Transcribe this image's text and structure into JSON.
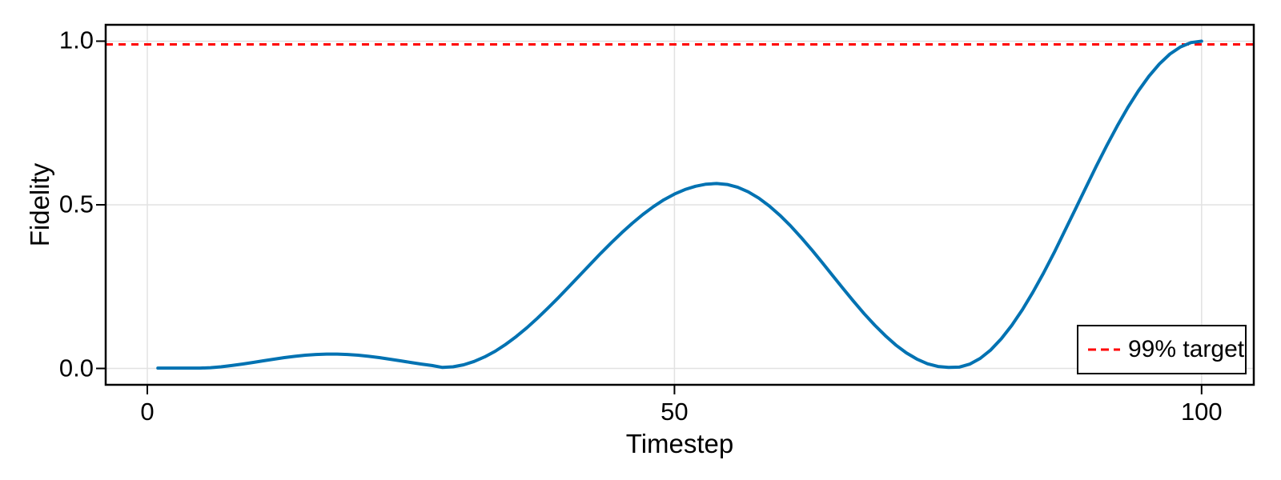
{
  "chart_data": {
    "type": "line",
    "title": "",
    "xlabel": "Timestep",
    "ylabel": "Fidelity",
    "xlim": [
      -3.95,
      104.95
    ],
    "ylim": [
      -0.05,
      1.05
    ],
    "x_ticks": [
      0,
      50,
      100
    ],
    "x_tick_labels": [
      "0",
      "50",
      "100"
    ],
    "y_ticks": [
      0,
      0.5,
      1
    ],
    "y_tick_labels": [
      "0.0",
      "0.5",
      "1.0"
    ],
    "grid": true,
    "grid_color": "#e2e2e2",
    "frame_color": "#000000",
    "background": "#ffffff",
    "legend_position": "bottom-right",
    "series": [
      {
        "name": "fidelity",
        "color": "#0072B2",
        "line_width": 4,
        "x": [
          1,
          2,
          3,
          4,
          5,
          6,
          7,
          8,
          9,
          10,
          11,
          12,
          13,
          14,
          15,
          16,
          17,
          18,
          19,
          20,
          21,
          22,
          23,
          24,
          25,
          26,
          27,
          28,
          29,
          30,
          31,
          32,
          33,
          34,
          35,
          36,
          37,
          38,
          39,
          40,
          41,
          42,
          43,
          44,
          45,
          46,
          47,
          48,
          49,
          50,
          51,
          52,
          53,
          54,
          55,
          56,
          57,
          58,
          59,
          60,
          61,
          62,
          63,
          64,
          65,
          66,
          67,
          68,
          69,
          70,
          71,
          72,
          73,
          74,
          75,
          76,
          77,
          78,
          79,
          80,
          81,
          82,
          83,
          84,
          85,
          86,
          87,
          88,
          89,
          90,
          91,
          92,
          93,
          94,
          95,
          96,
          97,
          98,
          99,
          100
        ],
        "y": [
          0.001,
          0.001,
          0.001,
          0.001,
          0.0012,
          0.0023,
          0.0051,
          0.0089,
          0.0133,
          0.0182,
          0.0233,
          0.0283,
          0.033,
          0.0371,
          0.0404,
          0.0427,
          0.0439,
          0.0439,
          0.0427,
          0.0404,
          0.0371,
          0.033,
          0.0283,
          0.0233,
          0.0182,
          0.0133,
          0.0089,
          0.003,
          0.0051,
          0.0112,
          0.0213,
          0.0352,
          0.0527,
          0.0737,
          0.0976,
          0.1243,
          0.1533,
          0.1844,
          0.2167,
          0.2502,
          0.284,
          0.3179,
          0.3513,
          0.3836,
          0.4146,
          0.4436,
          0.4703,
          0.4944,
          0.5154,
          0.5328,
          0.5468,
          0.5568,
          0.563,
          0.565,
          0.5622,
          0.5536,
          0.5397,
          0.5204,
          0.4964,
          0.468,
          0.4359,
          0.4008,
          0.3633,
          0.3241,
          0.284,
          0.244,
          0.2048,
          0.1671,
          0.1322,
          0.1001,
          0.0716,
          0.0476,
          0.0284,
          0.0144,
          0.0059,
          0.003,
          0.0041,
          0.013,
          0.0306,
          0.0566,
          0.0905,
          0.1318,
          0.1795,
          0.2329,
          0.2911,
          0.353,
          0.4187,
          0.4849,
          0.5514,
          0.617,
          0.6807,
          0.7411,
          0.797,
          0.8479,
          0.8928,
          0.9305,
          0.9607,
          0.9825,
          0.9958,
          1.0
        ]
      }
    ],
    "target_line": {
      "y": 0.99,
      "color": "#FF0000",
      "style": "dashed",
      "line_width": 3
    },
    "legend": {
      "entries": [
        {
          "label": "99% target",
          "color": "#FF0000",
          "style": "dashed"
        }
      ]
    }
  }
}
